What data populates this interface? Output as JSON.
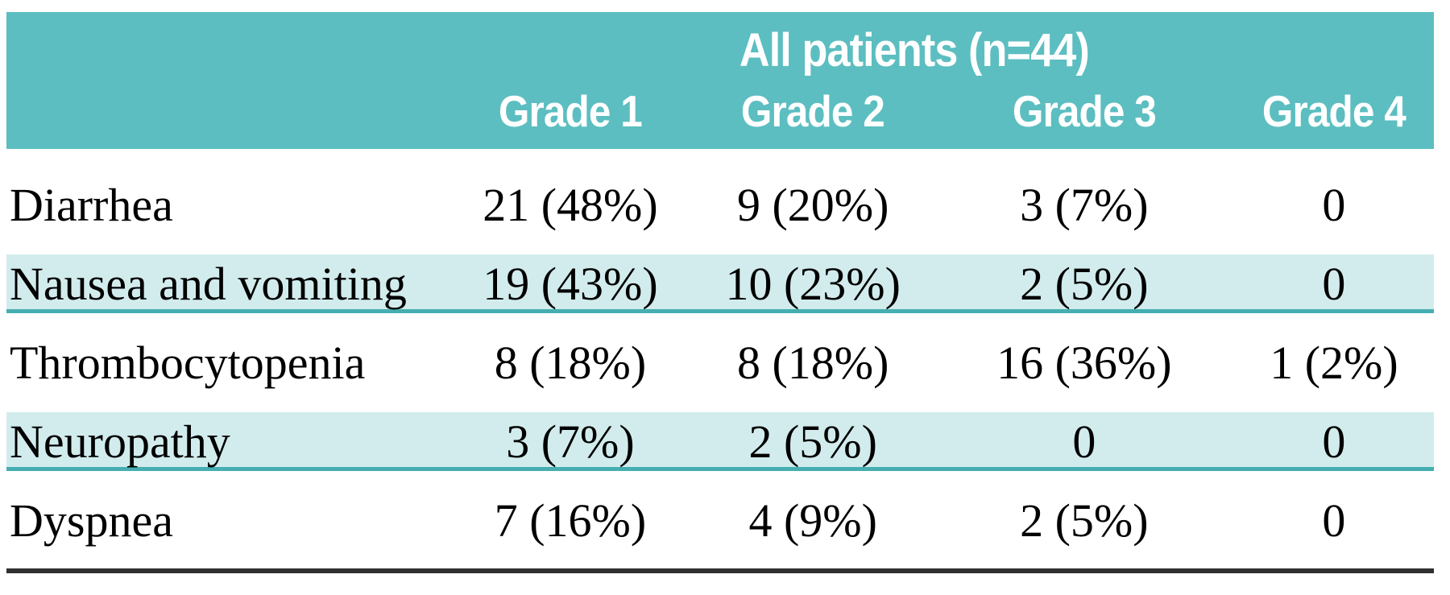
{
  "table": {
    "group_header": "All patients (n=44)",
    "columns": [
      "Grade 1",
      "Grade 2",
      "Grade 3",
      "Grade 4"
    ],
    "rows": [
      {
        "label": "Diarrhea",
        "values": [
          "21 (48%)",
          "9 (20%)",
          "3 (7%)",
          "0"
        ]
      },
      {
        "label": "Nausea and vomiting",
        "values": [
          "19 (43%)",
          "10 (23%)",
          "2 (5%)",
          "0"
        ]
      },
      {
        "label": "Thrombocytopenia",
        "values": [
          "8 (18%)",
          "8 (18%)",
          "16 (36%)",
          "1 (2%)"
        ]
      },
      {
        "label": "Neuropathy",
        "values": [
          "3 (7%)",
          "2 (5%)",
          "0",
          "0"
        ]
      },
      {
        "label": "Dyspnea",
        "values": [
          "7 (16%)",
          "4 (9%)",
          "2 (5%)",
          "0"
        ]
      }
    ]
  },
  "colors": {
    "header_teal": "#5cbec0",
    "row_shade": "#d2eced",
    "shade_underline": "#46aeb1",
    "bottom_rule": "#303030",
    "header_text": "#ffffff",
    "body_text": "#000000"
  }
}
